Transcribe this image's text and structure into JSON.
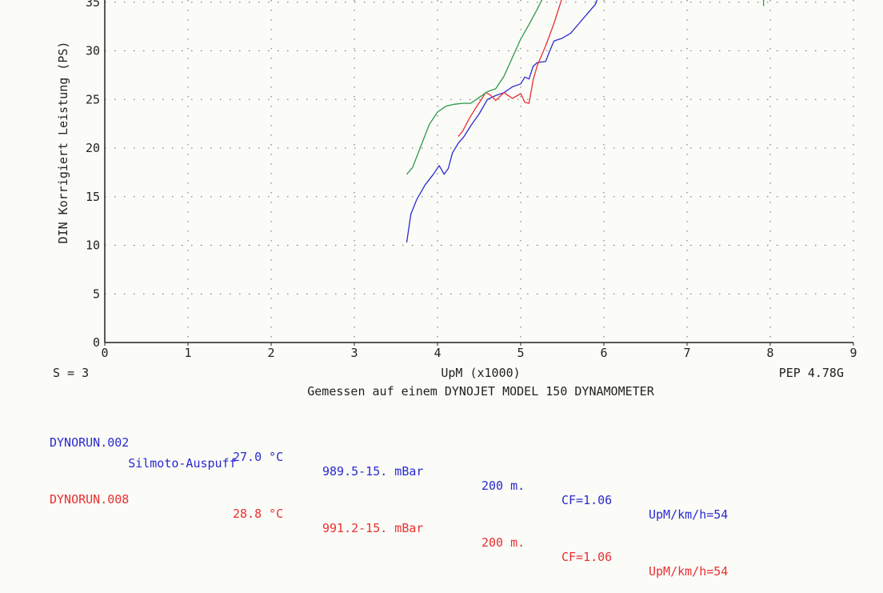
{
  "colors": {
    "run_002": "#2a2acf",
    "run_008": "#e83030",
    "run_green": "#2a9a4a",
    "axis": "#222222",
    "grid": "#666666",
    "background": "#fbfbf8"
  },
  "chart_data": {
    "type": "line",
    "ylabel": "DIN Korrigiert Leistung (PS)",
    "xlabel": "UpM (x1000)",
    "subtitle": "Gemessen auf einem DYNOJET MODEL 150 DYNAMOMETER",
    "smoothing": "S = 3",
    "software": "PEP 4.78G",
    "x_ticks": [
      "0",
      "1",
      "2",
      "3",
      "4",
      "5",
      "6",
      "7",
      "8",
      "9"
    ],
    "y_ticks": [
      "0",
      "5",
      "10",
      "15",
      "20",
      "25",
      "30",
      "35"
    ],
    "xlim": [
      0,
      9
    ],
    "ylim": [
      0,
      36.5
    ],
    "grid": true,
    "series": [
      {
        "id": "run_002",
        "x": [
          3.63,
          3.68,
          3.75,
          3.85,
          3.95,
          4.02,
          4.08,
          4.13,
          4.18,
          4.25,
          4.32,
          4.4,
          4.5,
          4.6,
          4.7,
          4.8,
          4.9,
          5.0,
          5.05,
          5.1,
          5.15,
          5.2,
          5.3,
          5.35,
          5.4,
          5.5,
          5.6,
          5.7,
          5.8,
          5.9,
          5.95
        ],
        "values": [
          10.3,
          13.2,
          14.7,
          16.2,
          17.3,
          18.2,
          17.3,
          17.9,
          19.5,
          20.5,
          21.2,
          22.3,
          23.5,
          25.0,
          25.4,
          25.7,
          26.3,
          26.6,
          27.3,
          27.1,
          28.4,
          28.8,
          28.9,
          30.0,
          31.0,
          31.3,
          31.8,
          32.8,
          33.8,
          34.8,
          36.0
        ]
      },
      {
        "id": "run_008",
        "x": [
          4.25,
          4.3,
          4.38,
          4.45,
          4.52,
          4.58,
          4.63,
          4.7,
          4.8,
          4.9,
          5.0,
          5.05,
          5.1,
          5.15,
          5.2,
          5.3,
          5.4,
          5.5
        ],
        "values": [
          21.2,
          21.7,
          23.0,
          24.0,
          24.9,
          25.7,
          25.5,
          24.9,
          25.7,
          25.1,
          25.6,
          24.7,
          24.6,
          27.0,
          28.5,
          30.5,
          32.8,
          35.5
        ]
      },
      {
        "id": "run_green",
        "x": [
          3.63,
          3.7,
          3.8,
          3.9,
          4.0,
          4.1,
          4.2,
          4.3,
          4.4,
          4.5,
          4.6,
          4.7,
          4.8,
          4.9,
          5.0,
          5.1,
          5.2,
          5.3
        ],
        "values": [
          17.3,
          18.0,
          20.2,
          22.4,
          23.7,
          24.3,
          24.5,
          24.6,
          24.6,
          25.2,
          25.8,
          26.1,
          27.4,
          29.3,
          31.2,
          32.7,
          34.3,
          36.0
        ]
      },
      {
        "id": "run_green_tail",
        "x": [
          7.92,
          7.92
        ],
        "values": [
          34.6,
          36.0
        ]
      }
    ]
  },
  "runs": [
    {
      "name": "DYNORUN.002",
      "temp": "27.0 °C",
      "pressure": "989.5-15. mBar",
      "altitude": "200 m.",
      "cf": "CF=1.06",
      "ratio": "UpM/km/h=54",
      "comment": "Silmoto-Auspuff"
    },
    {
      "name": "DYNORUN.008",
      "temp": "28.8 °C",
      "pressure": "991.2-15. mBar",
      "altitude": "200 m.",
      "cf": "CF=1.06",
      "ratio": "UpM/km/h=54"
    }
  ]
}
